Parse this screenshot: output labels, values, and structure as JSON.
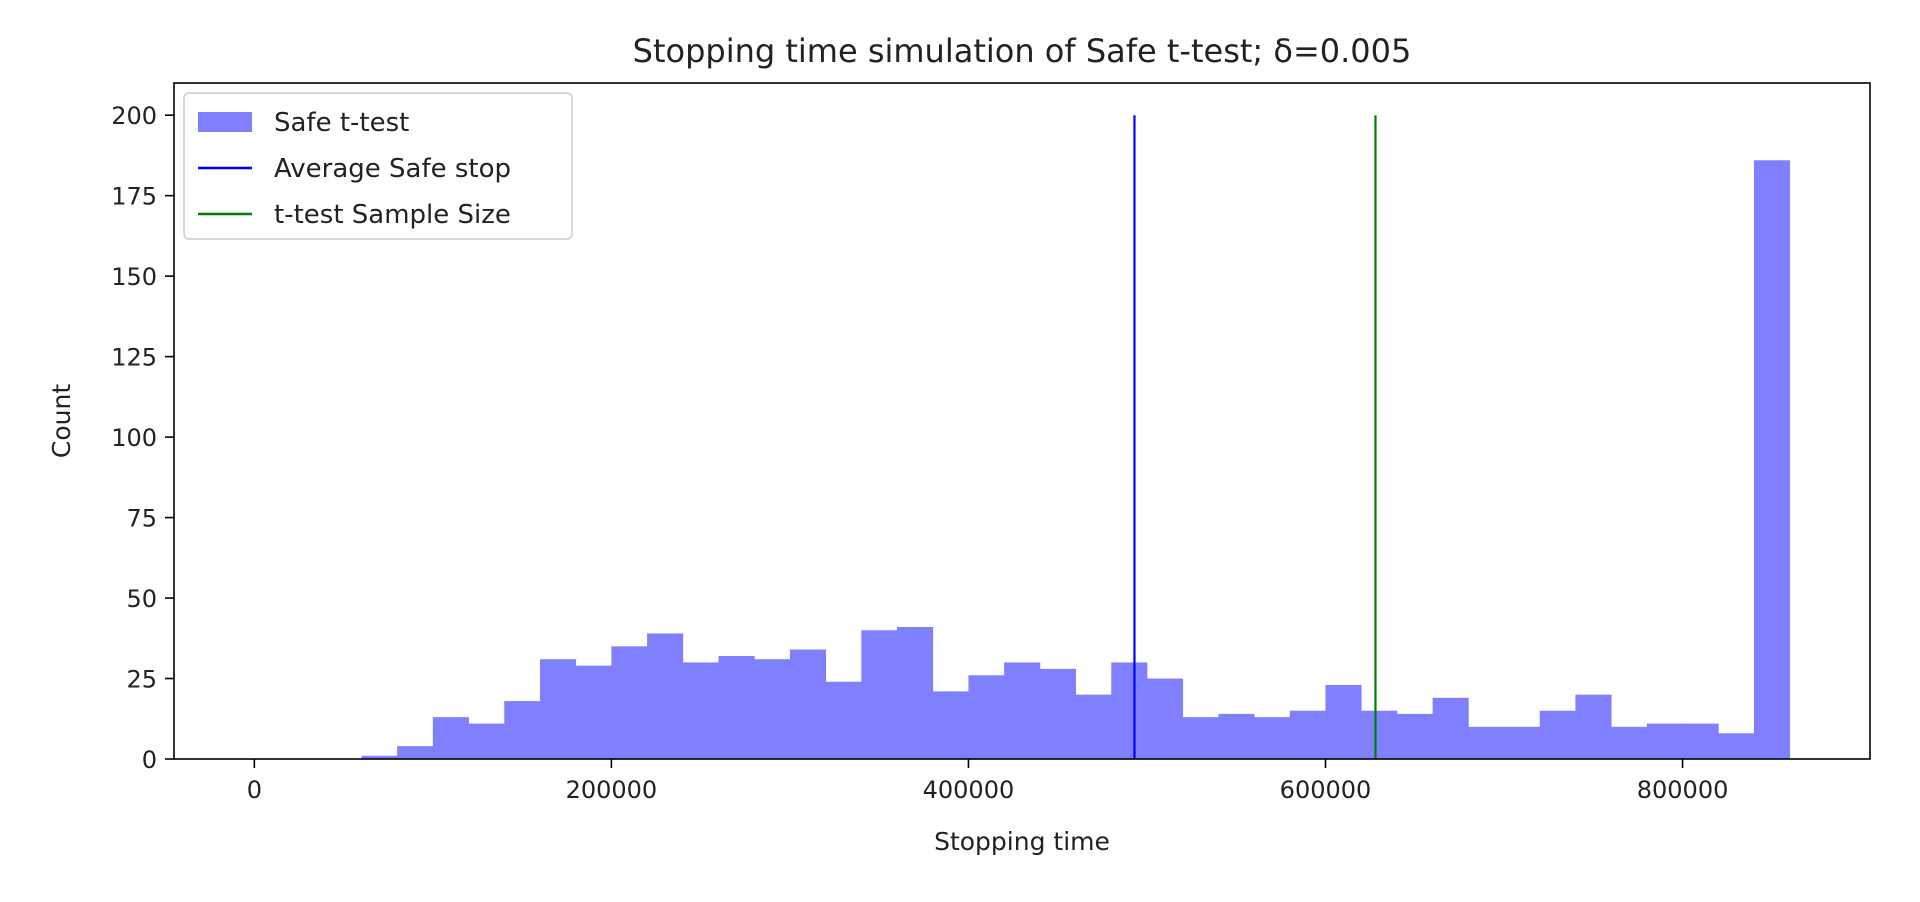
{
  "chart_data": {
    "type": "bar",
    "title": "Stopping time simulation of Safe t-test; δ=0.005",
    "xlabel": "Stopping time",
    "ylabel": "Count",
    "xlim": [
      -45000,
      905000
    ],
    "ylim": [
      0,
      210
    ],
    "x_ticks": [
      0,
      200000,
      400000,
      600000,
      800000
    ],
    "x_tick_labels": [
      "0",
      "200000",
      "400000",
      "600000",
      "800000"
    ],
    "y_ticks": [
      0,
      25,
      50,
      75,
      100,
      125,
      150,
      175,
      200
    ],
    "y_tick_labels": [
      "0",
      "25",
      "50",
      "75",
      "100",
      "125",
      "150",
      "175",
      "200"
    ],
    "grid": false,
    "legend_position": "top-left",
    "histogram": {
      "name": "Safe t-test",
      "color": "#8080ff",
      "bin_edges": [
        0,
        20000,
        40000,
        60000,
        80000,
        100000,
        120000,
        140000,
        160000,
        180000,
        200000,
        220000,
        240000,
        260000,
        280000,
        300000,
        320000,
        340000,
        360000,
        380000,
        400000,
        420000,
        440000,
        460000,
        480000,
        500000,
        520000,
        540000,
        560000,
        580000,
        600000,
        620000,
        640000,
        660000,
        680000,
        700000,
        720000,
        740000,
        760000,
        780000,
        800000,
        820000,
        840000,
        860000
      ],
      "counts": [
        0,
        0,
        0,
        1,
        4,
        13,
        11,
        18,
        31,
        29,
        35,
        39,
        30,
        32,
        31,
        34,
        24,
        40,
        41,
        21,
        26,
        30,
        28,
        20,
        30,
        25,
        13,
        14,
        13,
        15,
        23,
        15,
        14,
        19,
        10,
        10,
        15,
        20,
        10,
        11,
        11,
        8,
        186
      ]
    },
    "vlines": [
      {
        "name": "Average Safe stop",
        "x": 493000,
        "ymax": 200,
        "color": "#0000ff"
      },
      {
        "name": "t-test Sample Size",
        "x": 628000,
        "ymax": 200,
        "color": "#008000"
      }
    ],
    "legend": [
      {
        "label": "Safe t-test",
        "kind": "patch",
        "color": "#8080ff"
      },
      {
        "label": "Average Safe stop",
        "kind": "line",
        "color": "#0000ff"
      },
      {
        "label": "t-test Sample Size",
        "kind": "line",
        "color": "#008000"
      }
    ]
  }
}
